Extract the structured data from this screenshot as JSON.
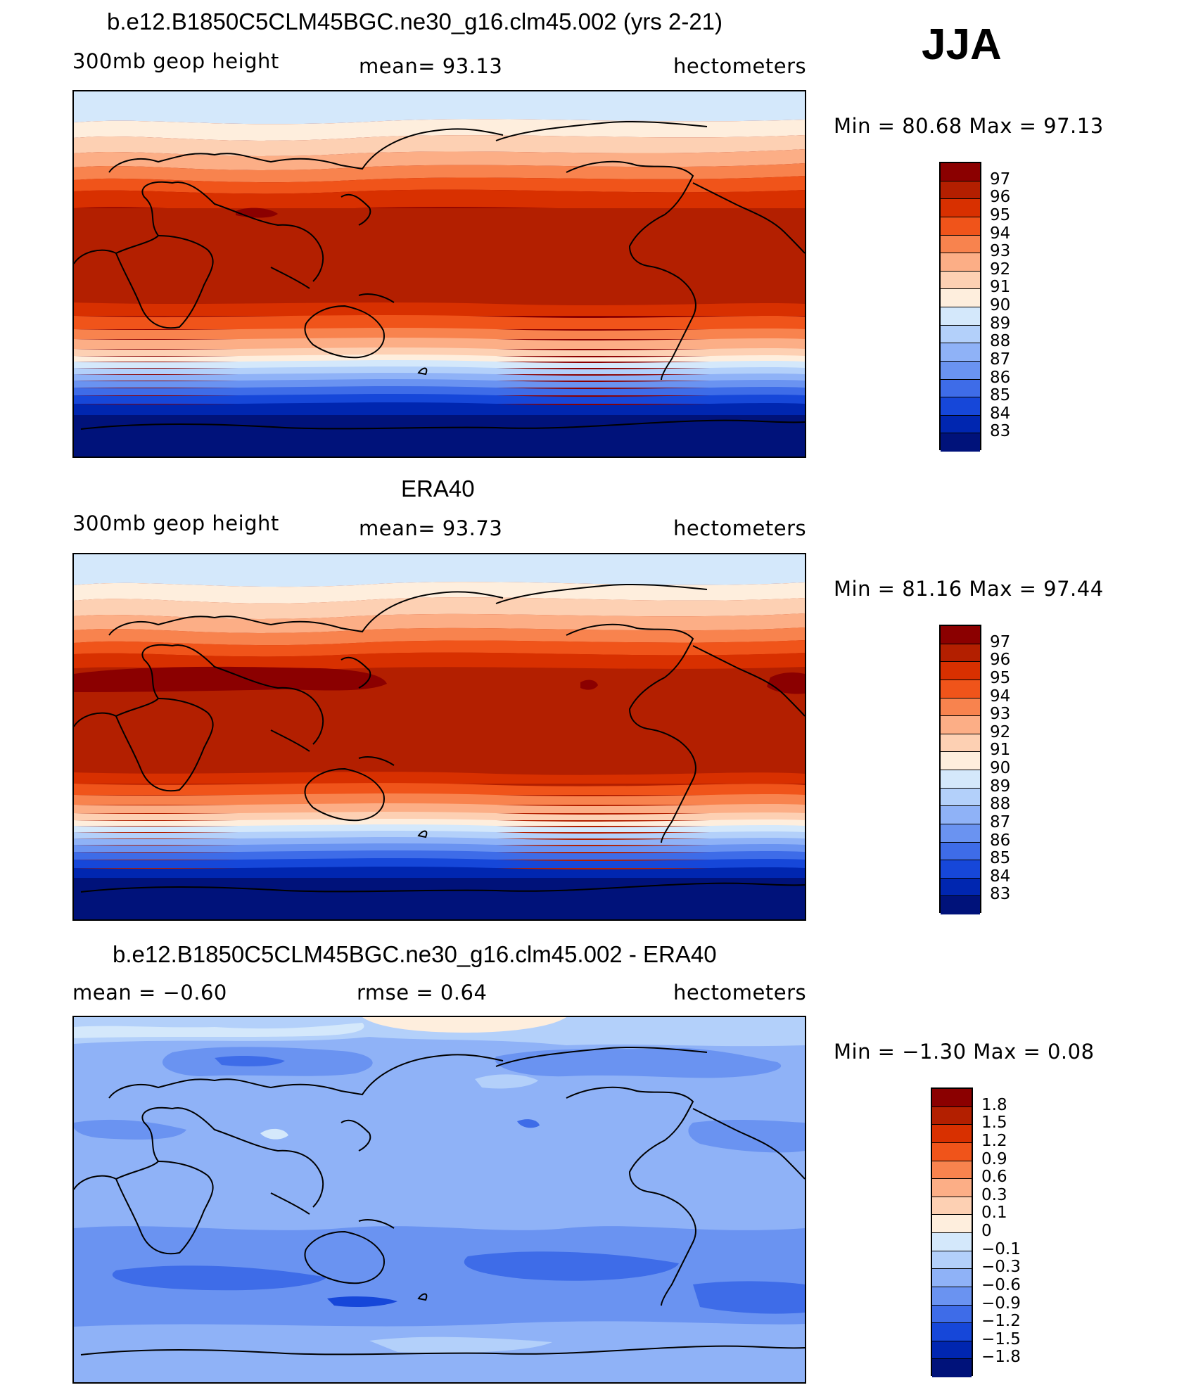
{
  "season": "JJA",
  "panels": [
    {
      "title": "b.e12.B1850C5CLM45BGC.ne30_g16.clm45.002 (yrs 2-21)",
      "left_text": "300mb  geop  height",
      "center_text": "mean=   93.13",
      "units": "hectometers",
      "minmax": "Min  =    80.68  Max  =    97.13",
      "levels": [
        "97",
        "96",
        "95",
        "94",
        "93",
        "92",
        "91",
        "90",
        "89",
        "88",
        "87",
        "86",
        "85",
        "84",
        "83"
      ],
      "colors": [
        "#8b0000",
        "#b31f00",
        "#d83000",
        "#f0541a",
        "#f8834e",
        "#fcae86",
        "#fdd0b3",
        "#feeedd",
        "#d4e8fb",
        "#b3d0fa",
        "#8fb2f7",
        "#6a93f1",
        "#3e6ce8",
        "#1647d9",
        "#0026b0",
        "#00127a"
      ]
    },
    {
      "title": "ERA40",
      "left_text": "300mb  geop  height",
      "center_text": "mean=   93.73",
      "units": "hectometers",
      "minmax": "Min  =    81.16  Max  =    97.44",
      "levels": [
        "97",
        "96",
        "95",
        "94",
        "93",
        "92",
        "91",
        "90",
        "89",
        "88",
        "87",
        "86",
        "85",
        "84",
        "83"
      ],
      "colors": [
        "#8b0000",
        "#b31f00",
        "#d83000",
        "#f0541a",
        "#f8834e",
        "#fcae86",
        "#fdd0b3",
        "#feeedd",
        "#d4e8fb",
        "#b3d0fa",
        "#8fb2f7",
        "#6a93f1",
        "#3e6ce8",
        "#1647d9",
        "#0026b0",
        "#00127a"
      ]
    },
    {
      "title": "b.e12.B1850C5CLM45BGC.ne30_g16.clm45.002 - ERA40",
      "left_text": "mean  =    −0.60",
      "center_text": "rmse  =     0.64",
      "units": "hectometers",
      "minmax": "Min  =   −1.30  Max  =     0.08",
      "levels": [
        "1.8",
        "1.5",
        "1.2",
        "0.9",
        "0.6",
        "0.3",
        "0.1",
        "0",
        "−0.1",
        "−0.3",
        "−0.6",
        "−0.9",
        "−1.2",
        "−1.5",
        "−1.8"
      ],
      "colors": [
        "#8b0000",
        "#b31f00",
        "#d83000",
        "#f0541a",
        "#f8834e",
        "#fcae86",
        "#fdd0b3",
        "#feeedd",
        "#d4e8fb",
        "#b3d0fa",
        "#8fb2f7",
        "#6a93f1",
        "#3e6ce8",
        "#1647d9",
        "#0026b0",
        "#00127a"
      ]
    }
  ]
}
